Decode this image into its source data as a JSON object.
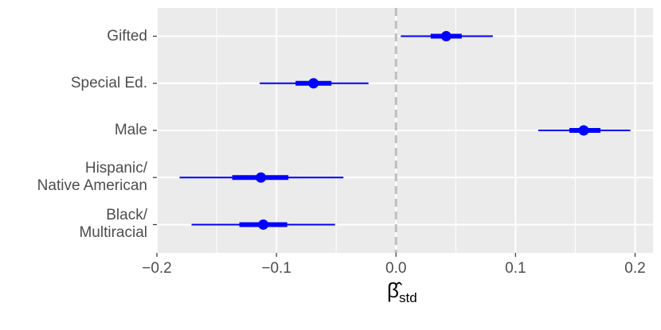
{
  "chart_data": {
    "type": "coefplot",
    "categories": [
      "Gifted",
      "Special Ed.",
      "Male",
      "Hispanic/\nNative American",
      "Black/\nMultiracial"
    ],
    "estimates": [
      0.042,
      -0.069,
      0.157,
      -0.113,
      -0.111
    ],
    "inner": [
      [
        0.029,
        0.055
      ],
      [
        -0.084,
        -0.054
      ],
      [
        0.145,
        0.171
      ],
      [
        -0.137,
        -0.09
      ],
      [
        -0.131,
        -0.091
      ]
    ],
    "outer": [
      [
        0.004,
        0.081
      ],
      [
        -0.114,
        -0.023
      ],
      [
        0.119,
        0.196
      ],
      [
        -0.181,
        -0.044
      ],
      [
        -0.171,
        -0.051
      ]
    ],
    "color": "#0000ff",
    "xlim": [
      -0.2,
      0.215
    ],
    "xticks": [
      {
        "value": -0.2,
        "label": "−0.2"
      },
      {
        "value": -0.1,
        "label": "−0.1"
      },
      {
        "value": 0,
        "label": "0.0"
      },
      {
        "value": 0.1,
        "label": "0.1"
      },
      {
        "value": 0.2,
        "label": "0.2"
      }
    ],
    "xminor": [
      -0.15,
      -0.05,
      0.05,
      0.15
    ],
    "reference_line": 0,
    "grid": true,
    "xlabel": {
      "symbol": "β̂",
      "subscript": "std"
    }
  }
}
